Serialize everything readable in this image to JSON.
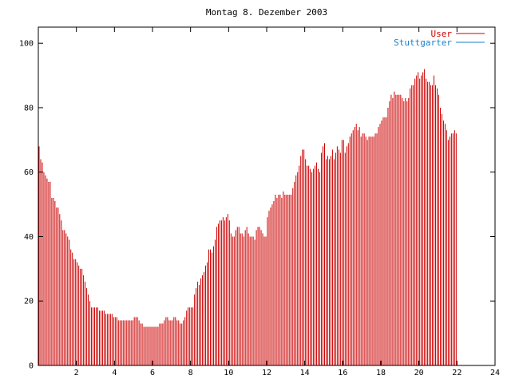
{
  "chart_data": {
    "type": "bar",
    "title": "Montag 8. Dezember 2003",
    "xlabel": "",
    "ylabel": "",
    "xlim": [
      0,
      24
    ],
    "ylim": [
      0,
      105
    ],
    "x_ticks": [
      2,
      4,
      6,
      8,
      10,
      12,
      14,
      16,
      18,
      20,
      22,
      24
    ],
    "y_ticks": [
      0,
      20,
      40,
      60,
      80,
      100
    ],
    "grid": false,
    "legend_position": "top-right",
    "bars_per_hour": 12,
    "series": [
      {
        "name": "User",
        "color": "#cc0000",
        "values": [
          68,
          64,
          63,
          60,
          59,
          58,
          57,
          57,
          52,
          52,
          51,
          49,
          49,
          47,
          45,
          42,
          42,
          41,
          40,
          39,
          36,
          35,
          33,
          33,
          32,
          31,
          30,
          30,
          28,
          26,
          24,
          22,
          20,
          18,
          18,
          18,
          18,
          18,
          17,
          17,
          17,
          17,
          16,
          16,
          16,
          16,
          16,
          15,
          15,
          15,
          14,
          14,
          14,
          14,
          14,
          14,
          14,
          14,
          14,
          14,
          15,
          15,
          15,
          14,
          13,
          13,
          12,
          12,
          12,
          12,
          12,
          12,
          12,
          12,
          12,
          12,
          13,
          13,
          13,
          14,
          15,
          15,
          14,
          14,
          14,
          15,
          15,
          14,
          14,
          13,
          13,
          14,
          15,
          17,
          18,
          18,
          18,
          18,
          22,
          24,
          26,
          25,
          27,
          28,
          29,
          31,
          32,
          36,
          36,
          35,
          37,
          39,
          43,
          44,
          45,
          45,
          46,
          45,
          46,
          47,
          45,
          41,
          40,
          40,
          42,
          43,
          43,
          41,
          41,
          40,
          42,
          43,
          41,
          40,
          40,
          40,
          39,
          42,
          43,
          43,
          42,
          41,
          40,
          40,
          46,
          48,
          49,
          50,
          51,
          53,
          52,
          53,
          53,
          52,
          54,
          53,
          53,
          53,
          53,
          53,
          55,
          57,
          59,
          60,
          62,
          65,
          67,
          67,
          64,
          62,
          62,
          61,
          60,
          61,
          62,
          63,
          61,
          60,
          66,
          68,
          69,
          64,
          65,
          64,
          65,
          67,
          64,
          66,
          68,
          67,
          66,
          70,
          70,
          66,
          68,
          69,
          71,
          72,
          73,
          74,
          75,
          73,
          74,
          71,
          72,
          72,
          71,
          70,
          71,
          71,
          71,
          71,
          72,
          72,
          74,
          75,
          76,
          77,
          77,
          77,
          80,
          82,
          84,
          83,
          85,
          84,
          84,
          84,
          84,
          83,
          82,
          83,
          82,
          83,
          86,
          87,
          87,
          89,
          90,
          91,
          89,
          90,
          91,
          92,
          89,
          88,
          88,
          87,
          87,
          90,
          87,
          86,
          84,
          80,
          78,
          76,
          75,
          73,
          70,
          71,
          72,
          72,
          73,
          72
        ]
      },
      {
        "name": "Stuttgarter",
        "color": "#1a7fcc",
        "values": [
          0,
          0,
          0,
          0,
          0,
          0,
          0,
          0,
          0,
          0,
          0,
          0,
          0,
          0,
          0,
          0,
          0,
          0,
          0,
          0,
          0,
          0,
          0,
          0,
          0,
          0,
          0,
          0,
          0,
          0,
          0,
          0,
          0,
          0,
          0,
          0,
          0,
          0,
          0,
          0,
          0,
          0,
          0,
          0,
          0,
          0,
          0,
          0,
          0,
          0,
          0,
          0,
          0,
          0,
          0,
          0,
          0,
          0,
          0,
          0,
          0,
          0,
          0,
          0,
          0,
          0,
          0,
          0,
          0,
          0,
          0,
          0,
          0,
          0,
          0,
          0,
          0,
          0,
          0,
          0,
          0,
          0,
          0,
          0,
          0,
          0,
          0,
          0,
          0,
          0,
          0,
          0,
          0,
          0,
          0,
          0,
          0,
          0,
          0,
          0,
          0,
          0,
          0,
          0,
          0,
          0,
          0,
          0,
          0,
          0,
          0,
          0,
          0,
          0,
          0,
          0,
          0,
          0,
          0,
          0,
          0,
          0,
          0,
          0,
          0,
          0,
          0,
          0,
          0,
          0,
          0,
          0,
          0,
          0,
          0,
          0,
          0,
          0,
          0,
          0,
          0,
          0,
          0,
          0,
          0,
          0,
          0,
          0,
          0,
          0,
          0,
          0,
          0,
          0,
          0,
          0,
          0,
          0,
          0,
          0,
          0,
          0,
          0,
          0,
          0,
          0,
          0,
          0,
          0,
          0,
          0,
          0,
          0,
          0,
          0,
          0,
          0,
          0,
          0,
          0,
          0,
          0,
          0,
          0,
          0,
          0,
          0,
          0,
          0,
          0,
          0,
          0,
          0,
          0,
          0,
          0,
          0,
          0,
          0,
          0,
          0,
          0,
          0,
          0,
          0,
          0,
          0,
          0,
          0,
          0,
          0,
          0,
          0,
          0,
          0,
          0,
          0,
          0,
          0,
          0,
          0,
          0,
          0,
          0,
          0,
          0,
          0,
          0,
          0,
          0,
          0,
          0,
          0,
          0,
          0,
          0,
          0,
          0,
          0,
          0,
          0,
          0,
          0,
          0,
          0,
          0,
          0,
          0,
          0,
          0,
          0,
          0,
          0,
          0,
          0,
          0,
          0,
          0,
          0,
          0,
          0,
          0,
          0,
          0,
          0,
          0,
          0,
          0,
          0,
          0,
          0,
          0,
          0,
          0,
          0,
          0,
          0,
          0,
          0,
          0,
          0,
          0,
          0,
          0,
          0,
          0,
          0,
          0
        ]
      }
    ]
  }
}
